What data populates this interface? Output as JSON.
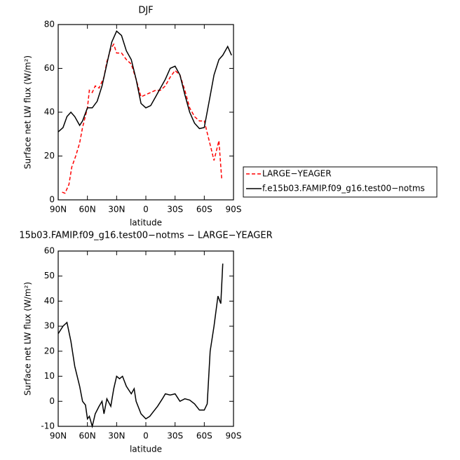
{
  "chart_data": [
    {
      "type": "line",
      "title": "DJF",
      "xlabel": "latitude",
      "ylabel": "Surface net LW flux (W/m²)",
      "xlim": [
        90,
        -90
      ],
      "xticks": [
        {
          "value": 90,
          "label": "90N"
        },
        {
          "value": 60,
          "label": "60N"
        },
        {
          "value": 30,
          "label": "30N"
        },
        0,
        {
          "value": -30,
          "label": "30S"
        },
        {
          "value": -60,
          "label": "60S"
        },
        {
          "value": -90,
          "label": "90S"
        }
      ],
      "ylim": [
        0,
        80
      ],
      "yticks": [
        0,
        20,
        40,
        60,
        80
      ],
      "series": [
        {
          "name": "LARGE−YEAGER",
          "color": "#ff0000",
          "dash": true,
          "x": [
            86,
            83,
            79,
            76,
            72,
            68,
            65,
            60,
            58,
            55,
            52,
            48,
            43,
            40,
            36,
            33,
            30,
            25,
            20,
            15,
            10,
            5,
            0,
            -5,
            -10,
            -15,
            -20,
            -25,
            -30,
            -35,
            -40,
            -45,
            -50,
            -55,
            -60,
            -65,
            -70,
            -75,
            -78
          ],
          "values": [
            3.5,
            3,
            7,
            15,
            20,
            26,
            33,
            42,
            50,
            49,
            52,
            51,
            56,
            63,
            69,
            71,
            67,
            67,
            64,
            62,
            55,
            47,
            48,
            49,
            50,
            50,
            52,
            56,
            59,
            57,
            50,
            42,
            38,
            36,
            36,
            27,
            18,
            27,
            9
          ]
        },
        {
          "name": "f.e15b03.FAMIP.f09_g16.test00−notms",
          "color": "#000000",
          "dash": false,
          "x": [
            90,
            85,
            81,
            77,
            73,
            68,
            65,
            60,
            55,
            50,
            45,
            40,
            35,
            30,
            25,
            20,
            15,
            10,
            5,
            0,
            -5,
            -10,
            -15,
            -20,
            -25,
            -30,
            -35,
            -40,
            -45,
            -50,
            -55,
            -60,
            -65,
            -70,
            -75,
            -79,
            -84,
            -88
          ],
          "values": [
            31,
            33,
            38,
            40,
            38,
            34,
            36,
            42,
            42,
            45,
            52,
            62,
            72,
            77,
            75,
            68,
            64,
            55,
            44,
            42,
            43,
            47,
            51,
            55,
            60,
            61,
            57,
            48,
            40,
            35,
            32.5,
            33,
            45,
            57,
            64,
            66,
            70,
            66
          ]
        }
      ]
    },
    {
      "type": "line",
      "title": "15b03.FAMIP.f09_g16.test00−notms − LARGE−YEAGER",
      "xlabel": "latitude",
      "ylabel": "Surface net LW flux (W/m²)",
      "xlim": [
        90,
        -90
      ],
      "xticks": [
        {
          "value": 90,
          "label": "90N"
        },
        {
          "value": 60,
          "label": "60N"
        },
        {
          "value": 30,
          "label": "30N"
        },
        0,
        {
          "value": -30,
          "label": "30S"
        },
        {
          "value": -60,
          "label": "60S"
        },
        {
          "value": -90,
          "label": "90S"
        }
      ],
      "ylim": [
        -10,
        60
      ],
      "yticks": [
        -10,
        0,
        10,
        20,
        30,
        40,
        50,
        60
      ],
      "series": [
        {
          "color": "#000000",
          "dash": false,
          "x": [
            90,
            85,
            81,
            77,
            73,
            68,
            65,
            62,
            60,
            58,
            55,
            52,
            48,
            45,
            43,
            40,
            36,
            33,
            30,
            27,
            24,
            20,
            15,
            12,
            10,
            5,
            0,
            -4,
            -8,
            -12,
            -17,
            -20,
            -25,
            -30,
            -35,
            -40,
            -45,
            -50,
            -55,
            -60,
            -63,
            -66,
            -70,
            -74,
            -77,
            -79
          ],
          "values": [
            27,
            30,
            31.5,
            24,
            14,
            6,
            0,
            -1.5,
            -7,
            -6,
            -10,
            -5,
            -2,
            0,
            -5,
            1,
            -2,
            5,
            10,
            9,
            10,
            6,
            3,
            5,
            0,
            -5,
            -7,
            -6,
            -4,
            -2,
            1,
            3,
            2.5,
            3,
            0,
            1,
            0.5,
            -1,
            -3.5,
            -3.5,
            -1,
            20,
            30,
            42,
            39,
            55
          ]
        }
      ]
    }
  ]
}
